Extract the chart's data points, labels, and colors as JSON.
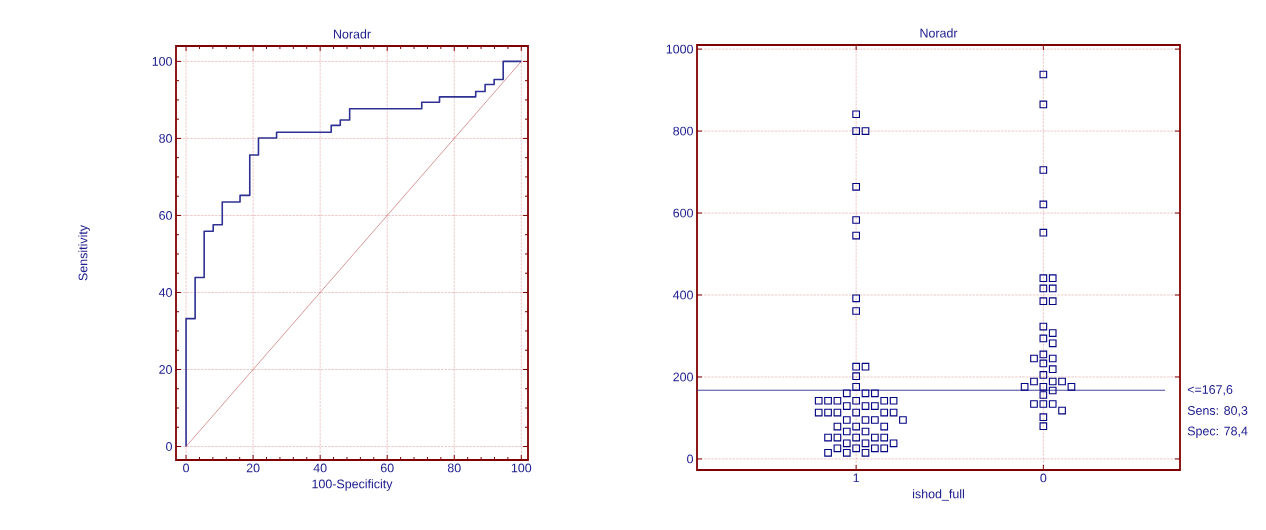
{
  "chart_data": [
    {
      "type": "step",
      "title": "Noradr",
      "xlabel": "100-Specificity",
      "ylabel": "Sensitivity",
      "xlim": [
        -3,
        102
      ],
      "ylim": [
        -3.5,
        104
      ],
      "xticks": [
        0,
        20,
        40,
        60,
        80,
        100
      ],
      "yticks": [
        0,
        20,
        40,
        60,
        80,
        100
      ],
      "grid": true,
      "series": [
        {
          "type": "step",
          "color": "#2e3192",
          "x": [
            0,
            0,
            2.7,
            5.4,
            8.1,
            10.8,
            16.1,
            19.0,
            21.6,
            27.0,
            43.3,
            46.0,
            48.8,
            70.3,
            75.6,
            86.4,
            89.2,
            91.9,
            94.6,
            100
          ],
          "values": [
            0,
            33.2,
            43.9,
            55.9,
            57.6,
            63.5,
            65.2,
            75.7,
            80.1,
            81.6,
            83.4,
            84.8,
            87.7,
            89.4,
            90.8,
            92.2,
            94.0,
            95.3,
            100,
            100
          ]
        },
        {
          "type": "line",
          "color": "#b03030",
          "x": [
            0,
            100
          ],
          "values": [
            0,
            100
          ]
        }
      ]
    },
    {
      "type": "scatter",
      "title": "Noradr",
      "xlabel": "ishod_full",
      "categories": [
        "1",
        "0"
      ],
      "ylim": [
        -27,
        1010
      ],
      "yticks": [
        0,
        200,
        400,
        600,
        800,
        1000
      ],
      "grid": true,
      "marker": "square",
      "series": [
        {
          "color": "#000080",
          "x": [
            "1",
            "1",
            "1",
            "1",
            "1",
            "1",
            "1",
            "1",
            "1",
            "1",
            "1",
            "1",
            "1",
            "1",
            "1",
            "1",
            "1",
            "1",
            "1",
            "1",
            "1",
            "1",
            "1",
            "1",
            "1",
            "1",
            "1",
            "1",
            "1",
            "1",
            "1",
            "1",
            "1",
            "1",
            "1",
            "1",
            "1",
            "1",
            "1",
            "1",
            "1",
            "1",
            "1",
            "1",
            "1",
            "1",
            "1",
            "1",
            "1",
            "1",
            "1",
            "1",
            "1",
            "1",
            "0",
            "0",
            "0",
            "0",
            "0",
            "0",
            "0",
            "0",
            "0",
            "0",
            "0",
            "0",
            "0",
            "0",
            "0",
            "0",
            "0",
            "0",
            "0",
            "0",
            "0",
            "0",
            "0",
            "0",
            "0",
            "0",
            "0",
            "0",
            "0",
            "0",
            "0",
            "0",
            "0",
            "0",
            "0"
          ],
          "values": [
            841,
            800,
            800,
            664,
            583,
            545,
            392,
            361,
            225,
            225,
            202,
            176,
            160,
            160,
            160,
            142,
            142,
            142,
            142,
            142,
            142,
            129,
            129,
            129,
            113,
            113,
            113,
            113,
            113,
            113,
            95,
            95,
            95,
            95,
            79,
            79,
            79,
            67,
            67,
            52,
            52,
            52,
            52,
            52,
            38,
            38,
            38,
            26,
            26,
            26,
            26,
            15,
            15,
            15,
            938,
            865,
            705,
            621,
            552,
            441,
            441,
            416,
            416,
            385,
            385,
            323,
            307,
            294,
            282,
            255,
            245,
            245,
            233,
            219,
            205,
            189,
            189,
            189,
            176,
            176,
            176,
            167,
            156,
            134,
            134,
            134,
            118,
            102,
            80
          ]
        }
      ],
      "ref_lines": [
        {
          "axis": "y",
          "value": 167.6,
          "label": "<=167,6",
          "color": "#2e3192"
        }
      ],
      "annotations": [
        "Sens: 80,3",
        "Spec: 78,4"
      ]
    }
  ]
}
